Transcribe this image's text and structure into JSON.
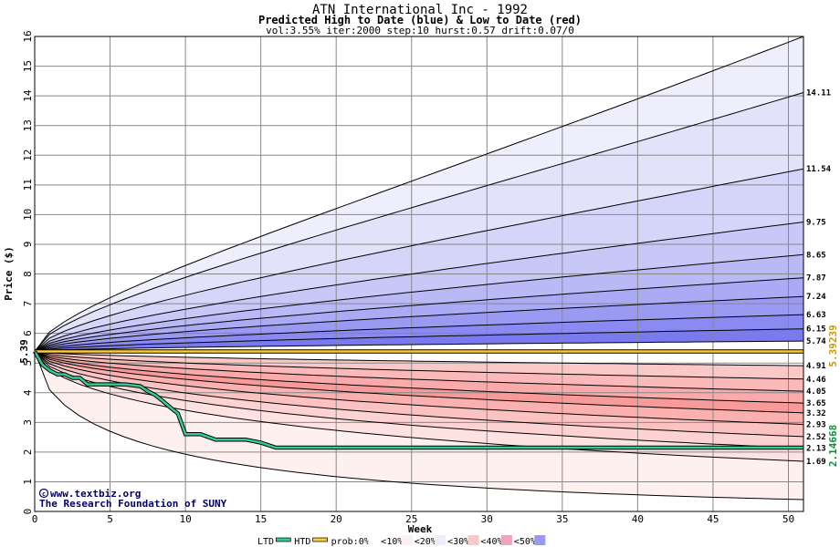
{
  "chart_data": {
    "type": "area",
    "title": "ATN International Inc - 1992",
    "subtitle": "Predicted High to Date (blue) &  Low to Date (red)",
    "params": "vol:3.55% iter:2000 step:10 hurst:0.57 drift:0.07/0",
    "xlabel": "Week",
    "ylabel": "Price ($)",
    "xlim": [
      0,
      51
    ],
    "ylim": [
      0,
      16
    ],
    "x_ticks": [
      0,
      5,
      10,
      15,
      20,
      25,
      30,
      35,
      40,
      45,
      50
    ],
    "y_ticks": [
      0,
      1,
      2,
      3,
      4,
      5,
      6,
      7,
      8,
      9,
      10,
      11,
      12,
      13,
      14,
      15,
      16
    ],
    "grid": true,
    "start_price": 5.39,
    "start_label": "5.39",
    "high_quantile_end_values": [
      16,
      14.11,
      11.54,
      9.75,
      8.65,
      7.87,
      7.24,
      6.63,
      6.15,
      5.74
    ],
    "low_quantile_end_values": [
      4.91,
      4.46,
      4.05,
      3.65,
      3.32,
      2.93,
      2.52,
      2.13,
      1.69,
      0.4
    ],
    "right_labels": [
      "14.11",
      "11.54",
      "9.75",
      "8.65",
      "7.87",
      "7.24",
      "6.63",
      "6.15",
      "5.74",
      "4.91",
      "4.46",
      "4.05",
      "3.65",
      "3.32",
      "2.93",
      "2.52",
      "2.13",
      "1.69"
    ],
    "high_band_colors": [
      "#eeeefc",
      "#e2e2fb",
      "#d5d5fa",
      "#c8c8f8",
      "#b9b9f6",
      "#aaaaf5",
      "#9a9af3",
      "#8a8af2",
      "#7a7af0"
    ],
    "low_band_colors": [
      "#fbc8c8",
      "#fbb9b9",
      "#faaaaa",
      "#f99a9a",
      "#fbb0b0",
      "#fcc2c2",
      "#fdd2d2",
      "#fee2e2",
      "#fff0f0"
    ],
    "ltd_series": {
      "name": "LTD",
      "color": "#33cc99",
      "x": [
        0,
        0.5,
        1,
        1.5,
        2,
        2.5,
        3,
        3.5,
        4,
        5,
        6,
        7,
        7.5,
        8,
        8.5,
        9,
        9.5,
        10,
        11,
        12,
        13,
        14,
        15,
        16,
        20,
        30,
        40,
        51
      ],
      "y": [
        5.39,
        4.95,
        4.75,
        4.62,
        4.62,
        4.5,
        4.5,
        4.28,
        4.28,
        4.28,
        4.28,
        4.22,
        4.05,
        3.92,
        3.72,
        3.5,
        3.3,
        2.6,
        2.6,
        2.42,
        2.42,
        2.42,
        2.32,
        2.15,
        2.15,
        2.15,
        2.15,
        2.15
      ]
    },
    "htd_series": {
      "name": "HTD",
      "color": "#ffcc33",
      "value": 5.39
    },
    "right_axis_values": [
      {
        "text": "5.39239",
        "color": "#cc9900"
      },
      {
        "text": "2.14668",
        "color": "#009933"
      }
    ],
    "legend": {
      "items": [
        {
          "label": "LTD",
          "color": "#33cc99"
        },
        {
          "label": "HTD",
          "color": "#ffcc33"
        },
        {
          "label": "prob:0%",
          "color": "#ffffff"
        },
        {
          "label": "<10%",
          "color": "#fff0f0"
        },
        {
          "label": "<20%",
          "color": "#eeeefc"
        },
        {
          "label": "<30%",
          "color": "#fbc8c8"
        },
        {
          "label": "<40%",
          "color": "#f4a0c0"
        },
        {
          "label": "<50%",
          "color": "#9a9af3"
        }
      ],
      "placement": "bottom"
    },
    "watermark": [
      "www.textbiz.org",
      "The Research Foundation of SUNY"
    ]
  }
}
